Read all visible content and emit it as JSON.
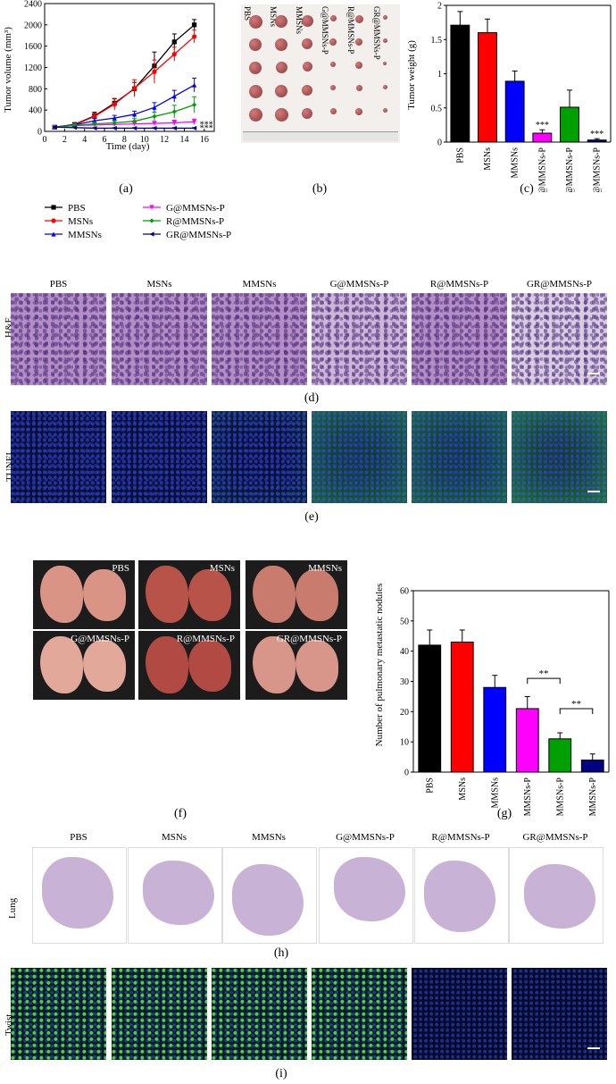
{
  "panels": {
    "a": "(a)",
    "b": "(b)",
    "c": "(c)",
    "d": "(d)",
    "e": "(e)",
    "f": "(f)",
    "g": "(g)",
    "h": "(h)",
    "i": "(i)"
  },
  "groups": [
    "PBS",
    "MSNs",
    "MMSNs",
    "G@MMSNs-P",
    "R@MMSNs-P",
    "GR@MMSNs-P"
  ],
  "colors": [
    "#000000",
    "#ff0000",
    "#0000ff",
    "#ff00ff",
    "#00a000",
    "#000080"
  ],
  "legend": {
    "col1": [
      "PBS",
      "MSNs",
      "MMSNs"
    ],
    "col2": [
      "G@MMSNs-P",
      "R@MMSNs-P",
      "GR@MMSNs-P"
    ]
  },
  "row_labels": {
    "he": "H&E",
    "tunel": "TUNEL",
    "lung": "Lung",
    "twist": "Twist"
  },
  "photo_b_labels": [
    "PBS",
    "MSNs",
    "MMSNs",
    "G@MMSNs-P",
    "R@MMSNs-P",
    "GR@MMSNs-P"
  ],
  "photo_f_labels": [
    "PBS",
    "MSNs",
    "MMSNs",
    "G@MMSNs-P",
    "R@MMSNs-P",
    "GR@MMSNs-P"
  ],
  "chart_data": [
    {
      "id": "a",
      "type": "line",
      "xlabel": "Time (day)",
      "ylabel": "Tumor volume (mm³)",
      "xlim": [
        0,
        17
      ],
      "ylim": [
        0,
        2400
      ],
      "xticks": [
        0,
        2,
        4,
        6,
        8,
        10,
        12,
        14,
        16
      ],
      "yticks": [
        0,
        400,
        800,
        1200,
        1600,
        2000,
        2400
      ],
      "x": [
        1,
        3,
        5,
        7,
        9,
        11,
        13,
        15
      ],
      "series": [
        {
          "name": "PBS",
          "values": [
            80,
            130,
            290,
            530,
            800,
            1230,
            1680,
            2000
          ],
          "err": [
            20,
            30,
            70,
            80,
            120,
            260,
            150,
            100
          ],
          "marker": "square"
        },
        {
          "name": "MSNs",
          "values": [
            80,
            120,
            280,
            510,
            810,
            1120,
            1450,
            1780
          ],
          "err": [
            20,
            30,
            60,
            110,
            160,
            220,
            130,
            120
          ],
          "marker": "circle"
        },
        {
          "name": "MMSNs",
          "values": [
            80,
            120,
            200,
            250,
            320,
            450,
            660,
            870
          ],
          "err": [
            20,
            25,
            40,
            50,
            60,
            90,
            110,
            130
          ],
          "marker": "triangle"
        },
        {
          "name": "G@MMSNs-P",
          "values": [
            80,
            110,
            120,
            130,
            140,
            150,
            160,
            180
          ],
          "err": [
            15,
            20,
            25,
            30,
            30,
            40,
            50,
            50
          ],
          "marker": "inverted-triangle"
        },
        {
          "name": "R@MMSNs-P",
          "values": [
            80,
            110,
            140,
            160,
            190,
            280,
            370,
            500
          ],
          "err": [
            15,
            20,
            30,
            40,
            50,
            80,
            120,
            150
          ],
          "marker": "diamond"
        },
        {
          "name": "GR@MMSNs-P",
          "values": [
            80,
            70,
            60,
            60,
            60,
            60,
            60,
            60
          ],
          "err": [
            10,
            10,
            10,
            10,
            10,
            10,
            10,
            10
          ],
          "marker": "left-triangle"
        }
      ],
      "annotations": [
        "***",
        "***"
      ]
    },
    {
      "id": "c",
      "type": "bar",
      "ylabel": "Tumor weight (g)",
      "ylim": [
        0,
        2.0
      ],
      "yticks": [
        0.0,
        0.5,
        1.0,
        1.5,
        2.0
      ],
      "categories": [
        "PBS",
        "MSNs",
        "MMSNs",
        "G@MMSNs-P",
        "R@MMSNs-P",
        "GR@MMSNs-P"
      ],
      "values": [
        1.71,
        1.6,
        0.89,
        0.13,
        0.51,
        0.03
      ],
      "err": [
        0.2,
        0.2,
        0.15,
        0.05,
        0.25,
        0.02
      ],
      "annotations": [
        "",
        "",
        "",
        "***",
        "",
        "***"
      ]
    },
    {
      "id": "g",
      "type": "bar",
      "ylabel": "Number of pulmonary metastatic nodules",
      "ylim": [
        0,
        60
      ],
      "yticks": [
        0,
        10,
        20,
        30,
        40,
        50,
        60
      ],
      "categories": [
        "PBS",
        "MSNs",
        "MMSNs",
        "G@MMSNs-P",
        "R@MMSNs-P",
        "GR@MMSNs-P"
      ],
      "values": [
        42,
        43,
        28,
        21,
        11,
        4
      ],
      "err": [
        5,
        4,
        4,
        4,
        2,
        2
      ],
      "significance": [
        {
          "from": 3,
          "to": 4,
          "label": "**"
        },
        {
          "from": 4,
          "to": 5,
          "label": "**"
        }
      ]
    }
  ]
}
